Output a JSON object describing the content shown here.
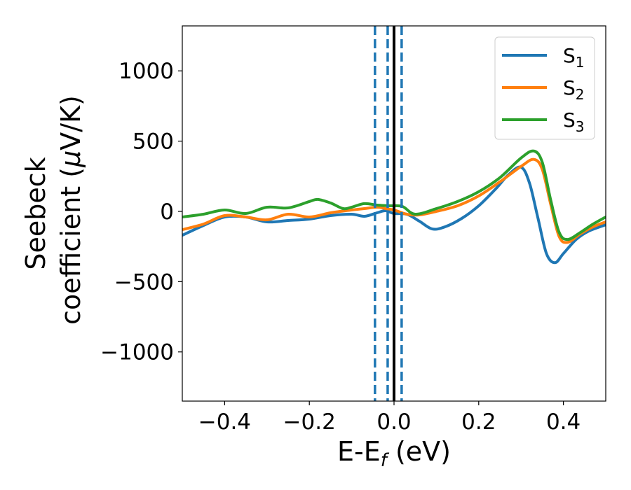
{
  "chart_data": {
    "type": "line",
    "xlabel": "E-E",
    "xlabel_sub": "f",
    "xlabel_unit": " (eV)",
    "ylabel_line1": "Seebeck",
    "ylabel_line2_pre": "coefficient  (",
    "ylabel_mu": "μ",
    "ylabel_line2_post": "V/K)",
    "xlim": [
      -0.5,
      0.5
    ],
    "ylim": [
      -1350,
      1320
    ],
    "xticks": [
      -0.4,
      -0.2,
      0.0,
      0.2,
      0.4
    ],
    "xtick_labels": [
      "−0.4",
      "−0.2",
      "0.0",
      "0.2",
      "0.4"
    ],
    "yticks": [
      -1000,
      -500,
      0,
      500,
      1000
    ],
    "ytick_labels": [
      "−1000",
      "−500",
      "0",
      "500",
      "1000"
    ],
    "grid": false,
    "legend_position": "top-right",
    "series": [
      {
        "name": "S",
        "sub": "1",
        "color": "#1f77b4",
        "x": [
          -0.5,
          -0.45,
          -0.4,
          -0.35,
          -0.3,
          -0.25,
          -0.2,
          -0.15,
          -0.1,
          -0.07,
          -0.04,
          -0.02,
          0.0,
          0.03,
          0.06,
          0.09,
          0.12,
          0.16,
          0.2,
          0.24,
          0.27,
          0.3,
          0.32,
          0.34,
          0.36,
          0.38,
          0.4,
          0.43,
          0.46,
          0.5
        ],
        "y": [
          -170,
          -100,
          -40,
          -40,
          -75,
          -65,
          -55,
          -30,
          -20,
          -35,
          -10,
          5,
          -15,
          -20,
          -70,
          -125,
          -110,
          -50,
          40,
          160,
          260,
          315,
          200,
          -50,
          -300,
          -365,
          -300,
          -200,
          -140,
          -95
        ]
      },
      {
        "name": "S",
        "sub": "2",
        "color": "#ff7f0e",
        "x": [
          -0.5,
          -0.45,
          -0.4,
          -0.35,
          -0.3,
          -0.25,
          -0.2,
          -0.15,
          -0.1,
          -0.07,
          -0.04,
          -0.02,
          0.0,
          0.03,
          0.06,
          0.1,
          0.15,
          0.2,
          0.25,
          0.3,
          0.33,
          0.35,
          0.37,
          0.39,
          0.41,
          0.44,
          0.47,
          0.5
        ],
        "y": [
          -130,
          -90,
          -30,
          -40,
          -60,
          -20,
          -40,
          -10,
          10,
          20,
          30,
          20,
          10,
          -20,
          -25,
          0,
          40,
          110,
          210,
          320,
          370,
          300,
          50,
          -180,
          -220,
          -160,
          -110,
          -75
        ]
      },
      {
        "name": "S",
        "sub": "3",
        "color": "#2ca02c",
        "x": [
          -0.5,
          -0.45,
          -0.4,
          -0.35,
          -0.3,
          -0.25,
          -0.2,
          -0.18,
          -0.15,
          -0.12,
          -0.1,
          -0.07,
          -0.04,
          -0.01,
          0.02,
          0.05,
          0.1,
          0.15,
          0.2,
          0.25,
          0.3,
          0.33,
          0.35,
          0.37,
          0.39,
          0.41,
          0.44,
          0.47,
          0.5
        ],
        "y": [
          -40,
          -20,
          10,
          -15,
          30,
          25,
          70,
          85,
          60,
          20,
          30,
          55,
          45,
          40,
          35,
          -20,
          20,
          70,
          140,
          240,
          380,
          430,
          350,
          80,
          -150,
          -200,
          -150,
          -90,
          -40
        ]
      }
    ],
    "vlines": [
      {
        "x": -0.045,
        "style": "dashed",
        "color": "#1f77b4"
      },
      {
        "x": -0.015,
        "style": "dashed",
        "color": "#1f77b4"
      },
      {
        "x": 0.018,
        "style": "dashed",
        "color": "#1f77b4"
      },
      {
        "x": 0.0,
        "style": "solid",
        "color": "#000000"
      }
    ]
  }
}
